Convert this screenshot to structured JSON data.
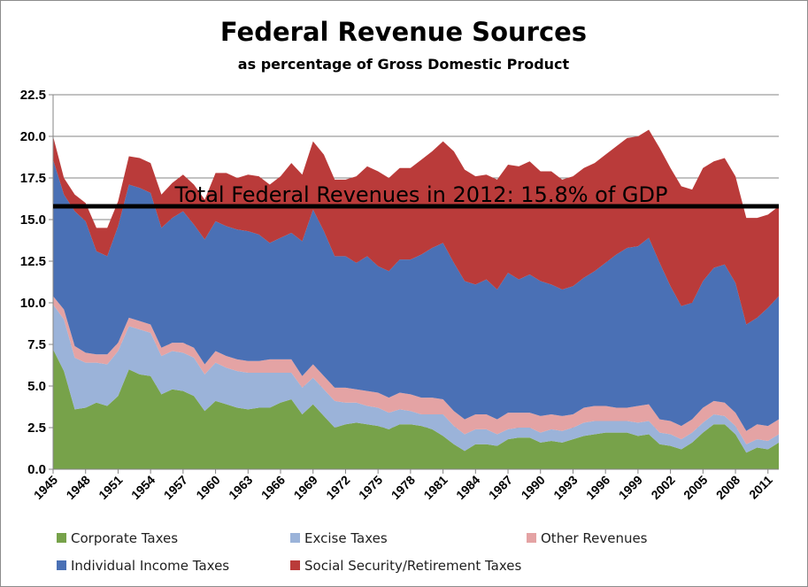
{
  "chart_data": {
    "type": "area",
    "stacked": true,
    "title": "Federal Revenue Sources",
    "subtitle": "as percentage of Gross Domestic Product",
    "ylim": [
      0,
      22.5
    ],
    "yticks": [
      "0.0",
      "2.5",
      "5.0",
      "7.5",
      "10.0",
      "12.5",
      "15.0",
      "17.5",
      "20.0",
      "22.5"
    ],
    "ytick_values": [
      0,
      2.5,
      5,
      7.5,
      10,
      12.5,
      15,
      17.5,
      20,
      22.5
    ],
    "xlim": [
      1945,
      2012
    ],
    "xticks": [
      "1945",
      "1948",
      "1951",
      "1954",
      "1957",
      "1960",
      "1963",
      "1966",
      "1969",
      "1972",
      "1975",
      "1978",
      "1981",
      "1984",
      "1987",
      "1990",
      "1993",
      "1996",
      "1999",
      "2002",
      "2005",
      "2008",
      "2011"
    ],
    "xtick_values": [
      1945,
      1948,
      1951,
      1954,
      1957,
      1960,
      1963,
      1966,
      1969,
      1972,
      1975,
      1978,
      1981,
      1984,
      1987,
      1990,
      1993,
      1996,
      1999,
      2002,
      2005,
      2008,
      2011
    ],
    "grid": true,
    "x": [
      1945,
      1946,
      1947,
      1948,
      1949,
      1950,
      1951,
      1952,
      1953,
      1954,
      1955,
      1956,
      1957,
      1958,
      1959,
      1960,
      1961,
      1962,
      1963,
      1964,
      1965,
      1966,
      1967,
      1968,
      1969,
      1970,
      1971,
      1972,
      1973,
      1974,
      1975,
      1976,
      1977,
      1978,
      1979,
      1980,
      1981,
      1982,
      1983,
      1984,
      1985,
      1986,
      1987,
      1988,
      1989,
      1990,
      1991,
      1992,
      1993,
      1994,
      1995,
      1996,
      1997,
      1998,
      1999,
      2000,
      2001,
      2002,
      2003,
      2004,
      2005,
      2006,
      2007,
      2008,
      2009,
      2010,
      2011,
      2012
    ],
    "series": [
      {
        "name": "Corporate Taxes",
        "color": "#77a24a",
        "values": [
          7.2,
          5.9,
          3.6,
          3.7,
          4.0,
          3.8,
          4.4,
          6.0,
          5.7,
          5.6,
          4.5,
          4.8,
          4.7,
          4.4,
          3.5,
          4.1,
          3.9,
          3.7,
          3.6,
          3.7,
          3.7,
          4.0,
          4.2,
          3.3,
          3.9,
          3.2,
          2.5,
          2.7,
          2.8,
          2.7,
          2.6,
          2.4,
          2.7,
          2.7,
          2.6,
          2.4,
          2.0,
          1.5,
          1.1,
          1.5,
          1.5,
          1.4,
          1.8,
          1.9,
          1.9,
          1.6,
          1.7,
          1.6,
          1.8,
          2.0,
          2.1,
          2.2,
          2.2,
          2.2,
          2.0,
          2.1,
          1.5,
          1.4,
          1.2,
          1.6,
          2.2,
          2.7,
          2.7,
          2.1,
          1.0,
          1.3,
          1.2,
          1.6
        ]
      },
      {
        "name": "Excise Taxes",
        "color": "#9bb3d9",
        "values": [
          2.7,
          3.1,
          3.1,
          2.7,
          2.4,
          2.5,
          2.7,
          2.6,
          2.7,
          2.6,
          2.3,
          2.3,
          2.3,
          2.3,
          2.2,
          2.3,
          2.2,
          2.2,
          2.2,
          2.1,
          2.1,
          1.8,
          1.6,
          1.6,
          1.6,
          1.6,
          1.6,
          1.3,
          1.2,
          1.1,
          1.1,
          1.0,
          0.9,
          0.8,
          0.7,
          0.9,
          1.3,
          1.1,
          1.0,
          0.9,
          0.9,
          0.7,
          0.6,
          0.6,
          0.6,
          0.6,
          0.7,
          0.7,
          0.7,
          0.8,
          0.8,
          0.7,
          0.7,
          0.7,
          0.8,
          0.8,
          0.7,
          0.7,
          0.6,
          0.6,
          0.6,
          0.6,
          0.5,
          0.5,
          0.5,
          0.5,
          0.5,
          0.5
        ]
      },
      {
        "name": "Other Revenues",
        "color": "#e4a3a4",
        "values": [
          0.5,
          0.6,
          0.7,
          0.6,
          0.5,
          0.6,
          0.5,
          0.5,
          0.5,
          0.5,
          0.5,
          0.5,
          0.6,
          0.6,
          0.6,
          0.7,
          0.7,
          0.7,
          0.7,
          0.7,
          0.8,
          0.8,
          0.8,
          0.7,
          0.8,
          0.8,
          0.8,
          0.9,
          0.8,
          0.9,
          0.9,
          0.9,
          1.0,
          1.0,
          1.0,
          1.0,
          0.9,
          0.9,
          0.9,
          0.9,
          0.9,
          0.9,
          1.0,
          0.9,
          0.9,
          1.0,
          0.9,
          0.9,
          0.8,
          0.9,
          0.9,
          0.9,
          0.8,
          0.8,
          1.0,
          1.0,
          0.8,
          0.8,
          0.8,
          0.8,
          0.9,
          0.8,
          0.8,
          0.8,
          0.8,
          0.9,
          0.9,
          0.9
        ]
      },
      {
        "name": "Individual Income Taxes",
        "color": "#4a70b5",
        "values": [
          8.2,
          6.9,
          8.1,
          7.9,
          6.2,
          5.9,
          7.0,
          8.0,
          8.0,
          7.9,
          7.2,
          7.5,
          7.9,
          7.4,
          7.5,
          7.8,
          7.8,
          7.8,
          7.8,
          7.6,
          7.0,
          7.3,
          7.6,
          8.1,
          9.3,
          8.7,
          7.9,
          7.9,
          7.6,
          8.1,
          7.6,
          7.6,
          8.0,
          8.1,
          8.6,
          9.0,
          9.4,
          8.9,
          8.3,
          7.8,
          8.1,
          7.8,
          8.4,
          8.0,
          8.3,
          8.1,
          7.8,
          7.6,
          7.7,
          7.8,
          8.1,
          8.6,
          9.2,
          9.6,
          9.6,
          10.0,
          9.4,
          8.1,
          7.2,
          7.0,
          7.6,
          8.0,
          8.3,
          7.8,
          6.4,
          6.4,
          7.1,
          7.4
        ]
      },
      {
        "name": "Social Security/Retirement Taxes",
        "color": "#ba3b3a",
        "values": [
          1.4,
          1.0,
          1.0,
          1.1,
          1.4,
          1.7,
          1.5,
          1.7,
          1.8,
          1.8,
          2.0,
          2.1,
          2.2,
          2.4,
          2.4,
          2.9,
          3.2,
          3.1,
          3.4,
          3.5,
          3.5,
          3.7,
          4.2,
          4.0,
          4.1,
          4.6,
          4.6,
          4.6,
          5.2,
          5.4,
          5.7,
          5.6,
          5.5,
          5.5,
          5.7,
          5.8,
          6.1,
          6.7,
          6.7,
          6.5,
          6.3,
          6.6,
          6.5,
          6.8,
          6.8,
          6.6,
          6.8,
          6.6,
          6.6,
          6.6,
          6.5,
          6.5,
          6.5,
          6.6,
          6.6,
          6.5,
          6.9,
          7.1,
          7.2,
          6.8,
          6.8,
          6.4,
          6.4,
          6.4,
          6.4,
          6.0,
          5.6,
          5.4
        ]
      }
    ],
    "annotations": [
      {
        "text": "Total Federal Revenues in 2012: 15.8% of GDP",
        "y": 15.8,
        "style": "horizontal-line"
      }
    ],
    "legend": {
      "position": "bottom",
      "entries": [
        "Corporate Taxes",
        "Excise Taxes",
        "Other Revenues",
        "Individual Income Taxes",
        "Social Security/Retirement Taxes"
      ]
    }
  }
}
